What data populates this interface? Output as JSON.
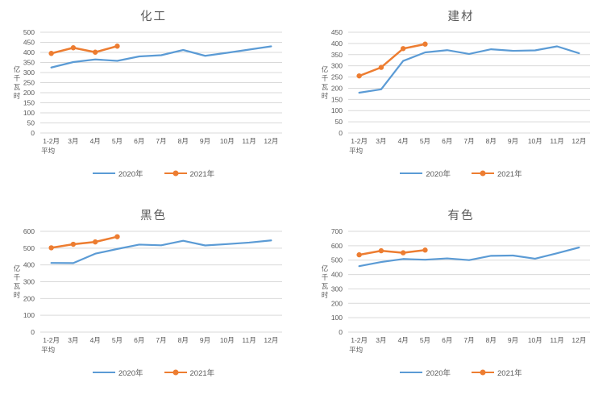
{
  "colors": {
    "series_2020": "#5B9BD5",
    "series_2021": "#ED7D31",
    "gridline": "#D9D9D9",
    "axis_text": "#595959",
    "title_text": "#595959",
    "background": "#FFFFFF"
  },
  "y_axis_title": "亿千瓦时",
  "chart_data": [
    {
      "type": "line",
      "title": "化工",
      "xlabel": "",
      "ylabel": "亿千瓦时",
      "ylim": [
        0,
        500
      ],
      "ytick_step": 50,
      "grid": true,
      "legend_position": "bottom",
      "categories": [
        "1-2月\n平均",
        "3月",
        "4月",
        "5月",
        "6月",
        "7月",
        "8月",
        "9月",
        "10月",
        "11月",
        "12月"
      ],
      "series": [
        {
          "name": "2020年",
          "color": "#5B9BD5",
          "marker": "none",
          "values": [
            325,
            352,
            365,
            358,
            380,
            386,
            412,
            383,
            398,
            414,
            430
          ]
        },
        {
          "name": "2021年",
          "color": "#ED7D31",
          "marker": "circle",
          "values": [
            395,
            423,
            401,
            431
          ]
        }
      ]
    },
    {
      "type": "line",
      "title": "建材",
      "xlabel": "",
      "ylabel": "亿千瓦时",
      "ylim": [
        0,
        450
      ],
      "ytick_step": 50,
      "grid": true,
      "legend_position": "bottom",
      "categories": [
        "1-2月\n平均",
        "3月",
        "4月",
        "5月",
        "6月",
        "7月",
        "8月",
        "9月",
        "10月",
        "11月",
        "12月"
      ],
      "series": [
        {
          "name": "2020年",
          "color": "#5B9BD5",
          "marker": "none",
          "values": [
            180,
            195,
            322,
            360,
            370,
            353,
            374,
            367,
            369,
            387,
            356
          ]
        },
        {
          "name": "2021年",
          "color": "#ED7D31",
          "marker": "circle",
          "values": [
            255,
            293,
            377,
            397
          ]
        }
      ]
    },
    {
      "type": "line",
      "title": "黑色",
      "xlabel": "",
      "ylabel": "亿千瓦时",
      "ylim": [
        0,
        600
      ],
      "ytick_step": 100,
      "grid": true,
      "legend_position": "bottom",
      "categories": [
        "1-2月\n平均",
        "3月",
        "4月",
        "5月",
        "6月",
        "7月",
        "8月",
        "9月",
        "10月",
        "11月",
        "12月"
      ],
      "series": [
        {
          "name": "2020年",
          "color": "#5B9BD5",
          "marker": "none",
          "values": [
            412,
            411,
            467,
            495,
            521,
            517,
            544,
            516,
            524,
            533,
            546
          ]
        },
        {
          "name": "2021年",
          "color": "#ED7D31",
          "marker": "circle",
          "values": [
            502,
            523,
            537,
            568
          ]
        }
      ]
    },
    {
      "type": "line",
      "title": "有色",
      "xlabel": "",
      "ylabel": "亿千瓦时",
      "ylim": [
        0,
        700
      ],
      "ytick_step": 100,
      "grid": true,
      "legend_position": "bottom",
      "categories": [
        "1-2月\n平均",
        "3月",
        "4月",
        "5月",
        "6月",
        "7月",
        "8月",
        "9月",
        "10月",
        "11月",
        "12月"
      ],
      "series": [
        {
          "name": "2020年",
          "color": "#5B9BD5",
          "marker": "none",
          "values": [
            458,
            487,
            508,
            503,
            512,
            500,
            530,
            532,
            510,
            548,
            588
          ]
        },
        {
          "name": "2021年",
          "color": "#ED7D31",
          "marker": "circle",
          "values": [
            537,
            565,
            551,
            570
          ]
        }
      ]
    }
  ]
}
